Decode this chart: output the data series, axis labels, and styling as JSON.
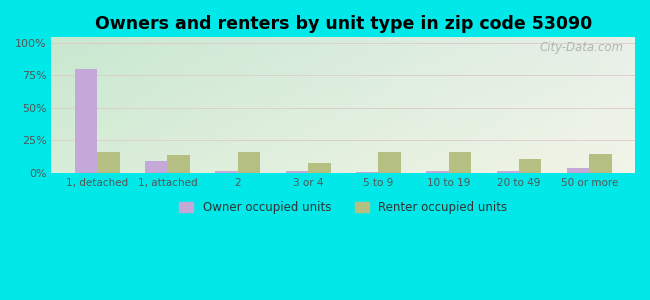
{
  "title": "Owners and renters by unit type in zip code 53090",
  "categories": [
    "1, detached",
    "1, attached",
    "2",
    "3 or 4",
    "5 to 9",
    "10 to 19",
    "20 to 49",
    "50 or more"
  ],
  "owner_values": [
    80,
    9,
    2,
    2,
    1,
    2,
    2,
    4
  ],
  "renter_values": [
    16,
    14,
    16,
    8,
    16,
    16,
    11,
    15
  ],
  "owner_color": "#c4a8d8",
  "renter_color": "#b5bf82",
  "background_outer": "#00e8e8",
  "title_fontsize": 12.5,
  "ylabel_ticks": [
    "0%",
    "25%",
    "50%",
    "75%",
    "100%"
  ],
  "ylabel_values": [
    0,
    25,
    50,
    75,
    100
  ],
  "ylim": [
    0,
    104
  ],
  "legend_owner": "Owner occupied units",
  "legend_renter": "Renter occupied units",
  "bar_width": 0.32,
  "watermark": "City-Data.com",
  "bg_top_left": "#c8e8d0",
  "bg_top_right": "#e8f0e8",
  "bg_bottom_left": "#d8edd8",
  "bg_bottom_right": "#f2f5e8"
}
